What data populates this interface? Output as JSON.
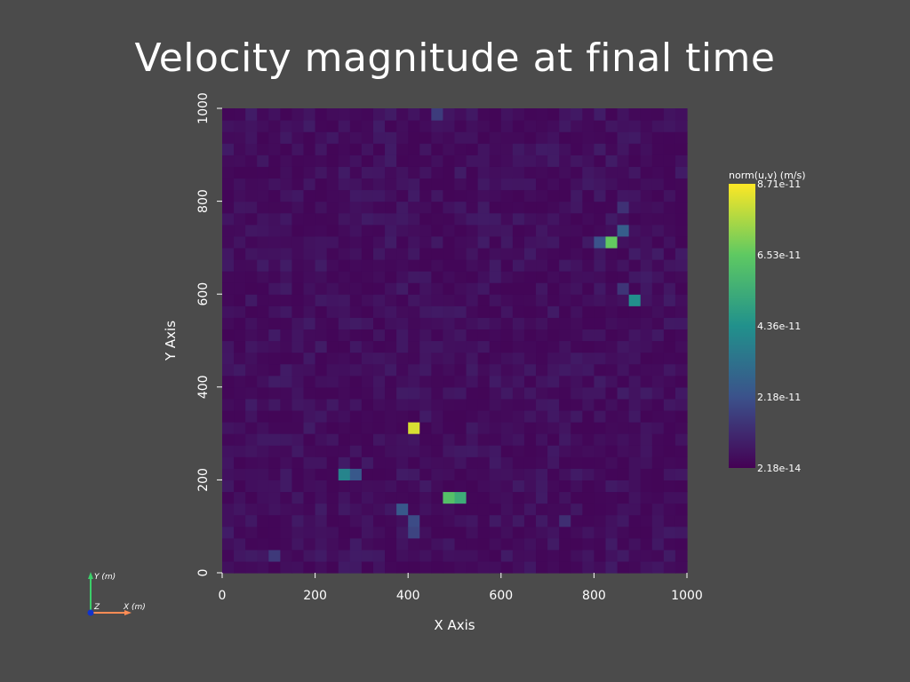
{
  "title": "Velocity magnitude at final time",
  "chart_data": {
    "type": "heatmap",
    "title": "Velocity magnitude at final time",
    "xlabel": "X Axis",
    "ylabel": "Y Axis",
    "xlim": [
      0,
      1000
    ],
    "ylim": [
      0,
      1000
    ],
    "x_ticks": [
      "0",
      "200",
      "400",
      "600",
      "800",
      "1000"
    ],
    "y_ticks": [
      "0",
      "200",
      "400",
      "600",
      "800",
      "1000"
    ],
    "grid_size": 40,
    "colorbar": {
      "title": "norm(u,v) (m/s)",
      "min": 2.18e-14,
      "max": 8.71e-11,
      "tick_labels": [
        "8.71e-11",
        "6.53e-11",
        "4.36e-11",
        "2.18e-11",
        "2.18e-14"
      ],
      "colormap": "viridis"
    },
    "background_level": 0.05,
    "hotspots": [
      {
        "x": 412,
        "y": 312,
        "value": 8.2e-11
      },
      {
        "x": 488,
        "y": 162,
        "value": 6.2e-11
      },
      {
        "x": 512,
        "y": 162,
        "value": 5.4e-11
      },
      {
        "x": 838,
        "y": 712,
        "value": 6.6e-11
      },
      {
        "x": 888,
        "y": 588,
        "value": 4.3e-11
      },
      {
        "x": 262,
        "y": 212,
        "value": 3.9e-11
      },
      {
        "x": 288,
        "y": 212,
        "value": 2.4e-11
      },
      {
        "x": 862,
        "y": 738,
        "value": 2.6e-11
      },
      {
        "x": 812,
        "y": 712,
        "value": 2.2e-11
      },
      {
        "x": 388,
        "y": 138,
        "value": 2.4e-11
      },
      {
        "x": 412,
        "y": 112,
        "value": 2e-11
      },
      {
        "x": 412,
        "y": 88,
        "value": 1.8e-11
      },
      {
        "x": 462,
        "y": 988,
        "value": 1.6e-11
      },
      {
        "x": 112,
        "y": 38,
        "value": 1.5e-11
      },
      {
        "x": 738,
        "y": 112,
        "value": 1.2e-11
      },
      {
        "x": 862,
        "y": 612,
        "value": 1.4e-11
      },
      {
        "x": 862,
        "y": 788,
        "value": 1.3e-11
      }
    ]
  },
  "orientation_axes": {
    "y_label": "Y (m)",
    "x_label": "X (m)",
    "z_label": "Z",
    "x_color": "#ff8c55",
    "y_color": "#3ccf6a",
    "z_color": "#1133cc"
  }
}
